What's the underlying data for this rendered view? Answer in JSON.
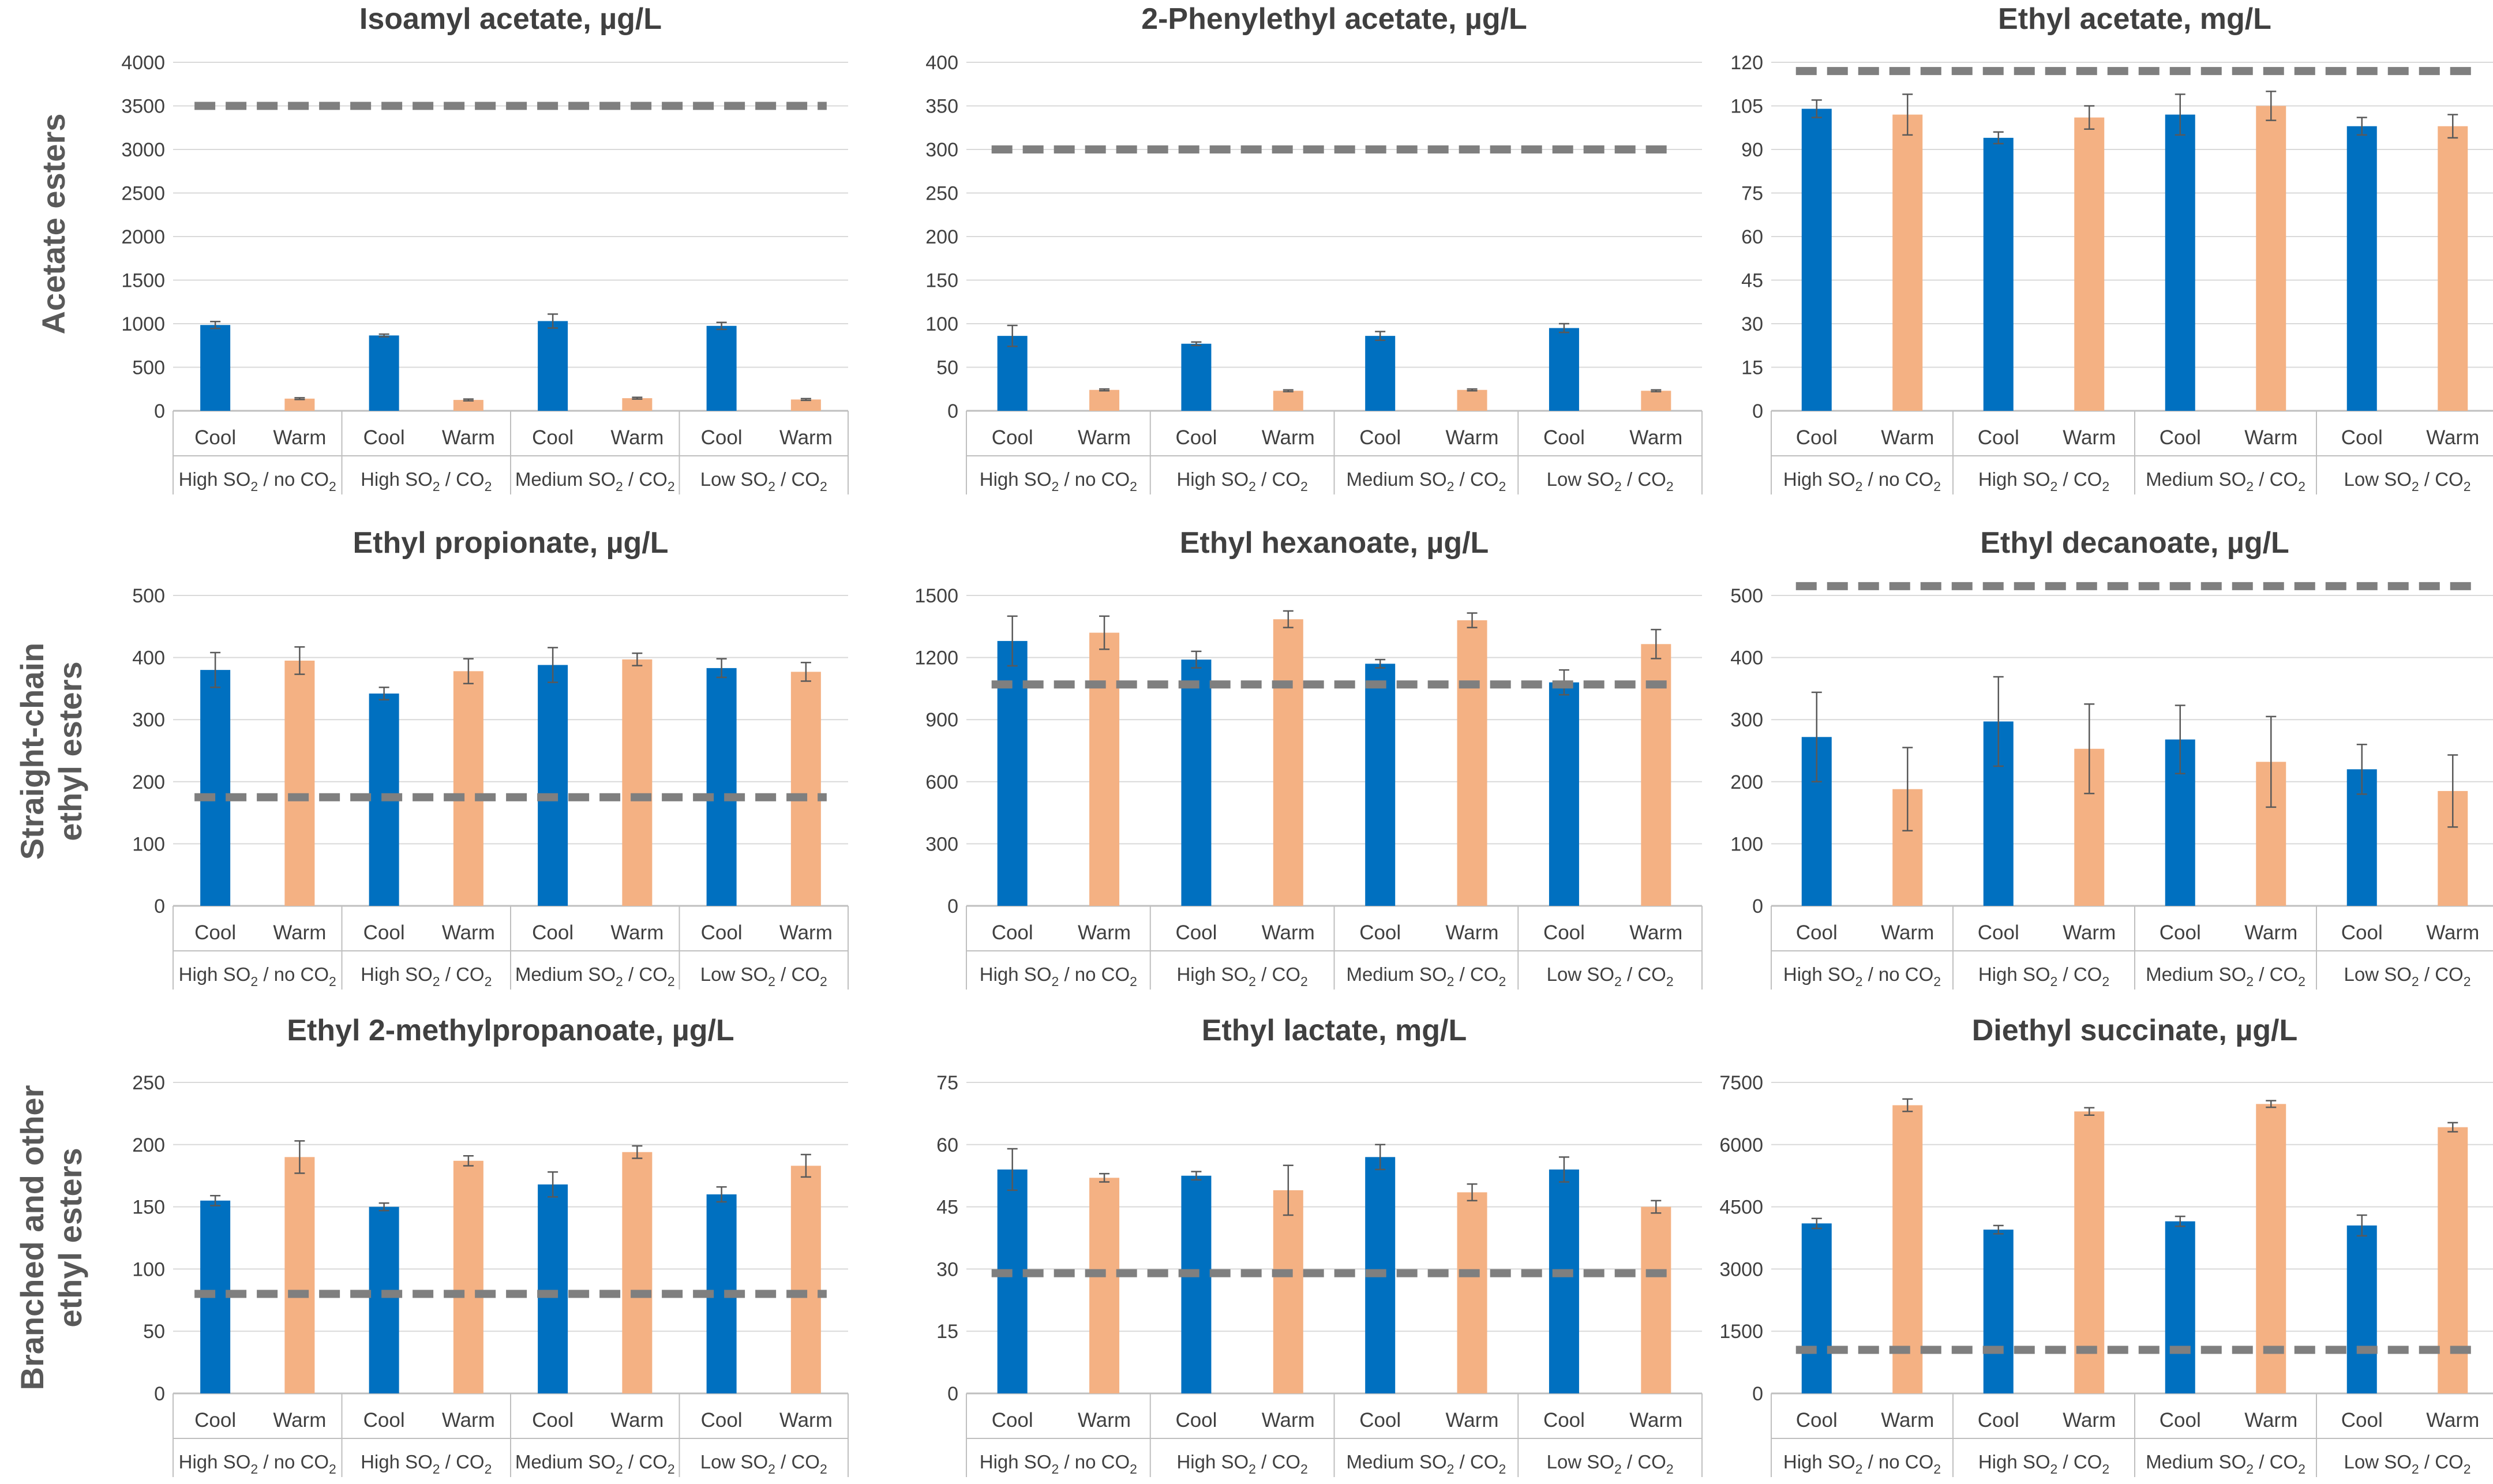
{
  "colors": {
    "cool": "#0070C0",
    "warm": "#F4B183",
    "threshold": "#7F7F7F",
    "grid": "#D9D9D9",
    "axis": "#BFBFBF",
    "text": "#404040"
  },
  "row_labels": [
    {
      "lines": [
        "Acetate esters"
      ]
    },
    {
      "lines": [
        "Straight-chain",
        "ethyl esters"
      ]
    },
    {
      "lines": [
        "Branched and other",
        "ethyl esters"
      ]
    }
  ],
  "x_categories": [
    "Cool",
    "Warm"
  ],
  "x_groups": [
    {
      "label": "High SO",
      "mid": " / no CO"
    },
    {
      "label": "High SO",
      "mid": " / CO"
    },
    {
      "label": "Medium SO",
      "mid": " / CO"
    },
    {
      "label": "Low SO",
      "mid": " / CO"
    }
  ],
  "chart_data": [
    {
      "type": "bar",
      "title": "Isoamyl acetate, µg/L",
      "ylim": [
        0,
        4000
      ],
      "yticks": [
        0,
        500,
        1000,
        1500,
        2000,
        2500,
        3000,
        3500,
        4000
      ],
      "threshold": 3500,
      "series": [
        {
          "name": "Cool",
          "values": [
            985,
            865,
            1030,
            975
          ],
          "errors": [
            40,
            15,
            80,
            40
          ]
        },
        {
          "name": "Warm",
          "values": [
            140,
            125,
            145,
            130
          ],
          "errors": [
            10,
            10,
            10,
            10
          ]
        }
      ]
    },
    {
      "type": "bar",
      "title": "2-Phenylethyl  acetate, µg/L",
      "ylim": [
        0,
        400
      ],
      "yticks": [
        0,
        50,
        100,
        150,
        200,
        250,
        300,
        350,
        400
      ],
      "threshold": 300,
      "series": [
        {
          "name": "Cool",
          "values": [
            86,
            77,
            86,
            95
          ],
          "errors": [
            12,
            2,
            5,
            5
          ]
        },
        {
          "name": "Warm",
          "values": [
            24,
            23,
            24,
            23
          ],
          "errors": [
            1,
            1,
            1,
            1
          ]
        }
      ]
    },
    {
      "type": "bar",
      "title": "Ethyl acetate, mg/L",
      "ylim": [
        0,
        120
      ],
      "yticks": [
        0,
        15,
        30,
        45,
        60,
        75,
        90,
        105,
        120
      ],
      "threshold": 117,
      "series": [
        {
          "name": "Cool",
          "values": [
            104,
            94,
            102,
            98
          ],
          "errors": [
            3,
            2,
            7,
            3
          ]
        },
        {
          "name": "Warm",
          "values": [
            102,
            101,
            105,
            98
          ],
          "errors": [
            7,
            4,
            5,
            4
          ]
        }
      ]
    },
    {
      "type": "bar",
      "title": "Ethyl propionate, µg/L",
      "ylim": [
        0,
        500
      ],
      "yticks": [
        0,
        100,
        200,
        300,
        400,
        500
      ],
      "threshold": 175,
      "series": [
        {
          "name": "Cool",
          "values": [
            380,
            342,
            388,
            383
          ],
          "errors": [
            28,
            10,
            28,
            15
          ]
        },
        {
          "name": "Warm",
          "values": [
            395,
            378,
            397,
            377
          ],
          "errors": [
            22,
            20,
            10,
            15
          ]
        }
      ]
    },
    {
      "type": "bar",
      "title": "Ethyl hexanoate, µg/L",
      "ylim": [
        0,
        1500
      ],
      "yticks": [
        0,
        300,
        600,
        900,
        1200,
        1500
      ],
      "threshold": 1070,
      "series": [
        {
          "name": "Cool",
          "values": [
            1280,
            1190,
            1170,
            1080
          ],
          "errors": [
            120,
            40,
            20,
            60
          ]
        },
        {
          "name": "Warm",
          "values": [
            1320,
            1385,
            1380,
            1265
          ],
          "errors": [
            80,
            40,
            35,
            70
          ]
        }
      ]
    },
    {
      "type": "bar",
      "title": "Ethyl decanoate, µg/L",
      "ylim": [
        0,
        500
      ],
      "yticks": [
        0,
        100,
        200,
        300,
        400,
        500
      ],
      "threshold": 515,
      "series": [
        {
          "name": "Cool",
          "values": [
            272,
            297,
            268,
            220
          ],
          "errors": [
            72,
            72,
            55,
            40
          ]
        },
        {
          "name": "Warm",
          "values": [
            188,
            253,
            232,
            185
          ],
          "errors": [
            67,
            72,
            73,
            58
          ]
        }
      ]
    },
    {
      "type": "bar",
      "title": "Ethyl 2-methylpropanoate, µg/L",
      "ylim": [
        0,
        250
      ],
      "yticks": [
        0,
        50,
        100,
        150,
        200,
        250
      ],
      "threshold": 80,
      "series": [
        {
          "name": "Cool",
          "values": [
            155,
            150,
            168,
            160
          ],
          "errors": [
            4,
            3,
            10,
            6
          ]
        },
        {
          "name": "Warm",
          "values": [
            190,
            187,
            194,
            183
          ],
          "errors": [
            13,
            4,
            5,
            9
          ]
        }
      ]
    },
    {
      "type": "bar",
      "title": "Ethyl lactate, mg/L",
      "ylim": [
        0,
        75
      ],
      "yticks": [
        0,
        15,
        30,
        45,
        60,
        75
      ],
      "threshold": 29,
      "series": [
        {
          "name": "Cool",
          "values": [
            54,
            52.5,
            57,
            54
          ],
          "errors": [
            5,
            1,
            3,
            3
          ]
        },
        {
          "name": "Warm",
          "values": [
            52,
            49,
            48.5,
            45
          ],
          "errors": [
            1,
            6,
            2,
            1.5
          ]
        }
      ]
    },
    {
      "type": "bar",
      "title": "Diethyl succinate, µg/L",
      "ylim": [
        0,
        7500
      ],
      "yticks": [
        0,
        1500,
        3000,
        4500,
        6000,
        7500
      ],
      "threshold": 1050,
      "series": [
        {
          "name": "Cool",
          "values": [
            4100,
            3950,
            4150,
            4050
          ],
          "errors": [
            120,
            100,
            120,
            250
          ]
        },
        {
          "name": "Warm",
          "values": [
            6950,
            6800,
            6980,
            6420
          ],
          "errors": [
            150,
            90,
            80,
            110
          ]
        }
      ]
    }
  ]
}
